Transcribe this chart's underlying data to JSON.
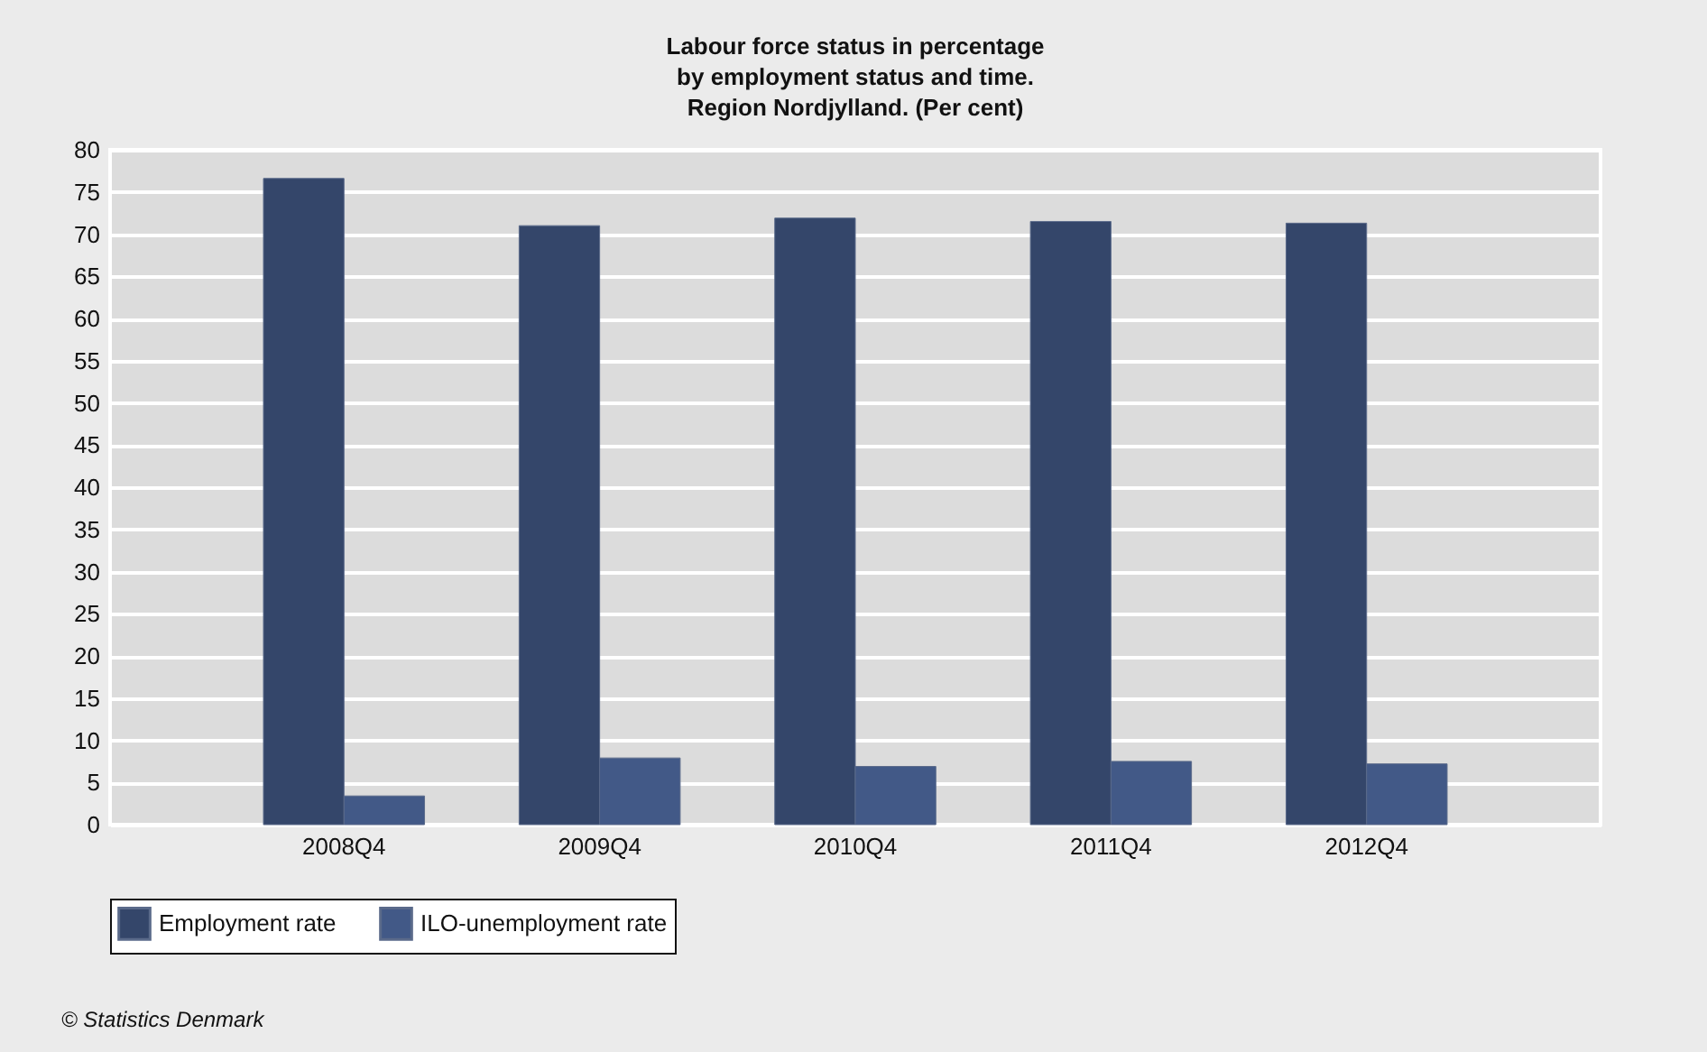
{
  "chart_data": {
    "type": "bar",
    "title": [
      "Labour force status in percentage",
      "by employment status and time.",
      "Region Nordjylland. (Per cent)"
    ],
    "categories": [
      "2008Q4",
      "2009Q4",
      "2010Q4",
      "2011Q4",
      "2012Q4"
    ],
    "series": [
      {
        "name": "Employment rate",
        "color": "#34466a",
        "values": [
          76.6,
          71.0,
          71.9,
          71.5,
          71.3
        ]
      },
      {
        "name": "ILO-unemployment rate",
        "color": "#425987",
        "values": [
          3.4,
          7.9,
          6.9,
          7.5,
          7.2
        ]
      }
    ],
    "ylim": [
      0,
      80
    ],
    "yticks": [
      0,
      5,
      10,
      15,
      20,
      25,
      30,
      35,
      40,
      45,
      50,
      55,
      60,
      65,
      70,
      75,
      80
    ],
    "grid": "y",
    "legend": "bottom",
    "annotations": [
      "© Statistics Denmark"
    ]
  }
}
